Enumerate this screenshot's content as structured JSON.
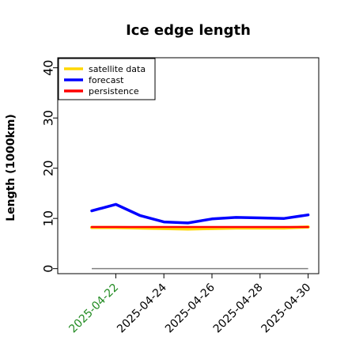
{
  "chart_data": {
    "type": "line",
    "title": "Ice edge length",
    "xlabel": "",
    "ylabel": "Length (1000km)",
    "ylim": [
      -1,
      42
    ],
    "yticks": [
      0,
      10,
      20,
      30,
      40
    ],
    "x": [
      "2025-04-21",
      "2025-04-22",
      "2025-04-23",
      "2025-04-24",
      "2025-04-25",
      "2025-04-26",
      "2025-04-27",
      "2025-04-28",
      "2025-04-29",
      "2025-04-30"
    ],
    "xtick_labels": [
      "2025-04-22",
      "2025-04-24",
      "2025-04-26",
      "2025-04-28",
      "2025-04-30"
    ],
    "highlight_tick": "2025-04-22",
    "highlight_color": "#228b22",
    "legend_position": "top-left",
    "series": [
      {
        "name": "satellite data",
        "color": "#ffd700",
        "values": [
          8.2,
          8.2,
          8.1,
          8.0,
          7.9,
          8.0,
          8.1,
          8.1,
          8.1,
          8.3
        ]
      },
      {
        "name": "forecast",
        "color": "#0000ff",
        "values": [
          11.5,
          12.8,
          10.6,
          9.3,
          9.1,
          9.9,
          10.2,
          10.1,
          10.0,
          10.7
        ]
      },
      {
        "name": "persistence",
        "color": "#ff0000",
        "values": [
          8.3,
          8.3,
          8.3,
          8.3,
          8.3,
          8.3,
          8.3,
          8.3,
          8.3,
          8.3
        ]
      }
    ],
    "reference_line": {
      "value": 0,
      "color": "#808080"
    }
  }
}
